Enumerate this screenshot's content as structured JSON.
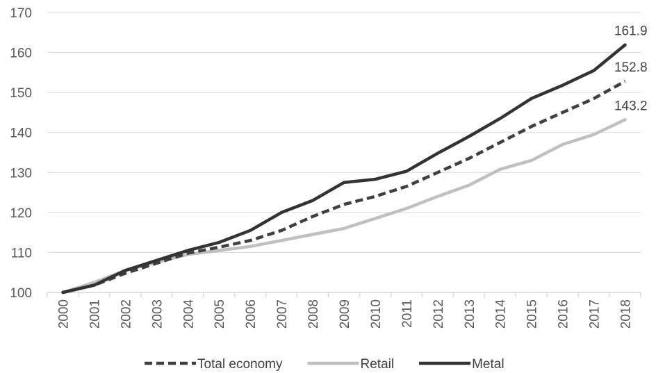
{
  "chart_data": {
    "type": "line",
    "title": "",
    "xlabel": "",
    "ylabel": "",
    "x": [
      "2000",
      "2001",
      "2002",
      "2003",
      "2004",
      "2005",
      "2006",
      "2007",
      "2008",
      "2009",
      "2010",
      "2011",
      "2012",
      "2013",
      "2014",
      "2015",
      "2016",
      "2017",
      "2018"
    ],
    "ylim": [
      100,
      170
    ],
    "yticks": [
      100,
      110,
      120,
      130,
      140,
      150,
      160,
      170
    ],
    "grid": "horizontal",
    "legend_position": "bottom",
    "series": [
      {
        "name": "Total economy",
        "style": "dashed",
        "color": "#404040",
        "values": [
          100,
          101.8,
          104.8,
          107.3,
          109.8,
          111.3,
          113.0,
          115.5,
          119.0,
          122.0,
          124.0,
          126.5,
          130.0,
          133.5,
          137.5,
          141.5,
          145.0,
          148.5,
          152.8
        ],
        "end_label": "152.8"
      },
      {
        "name": "Retail",
        "style": "solid",
        "color": "#c0c0c0",
        "values": [
          100,
          102.5,
          105.5,
          107.5,
          109.5,
          110.5,
          111.5,
          113.0,
          114.5,
          116.0,
          118.5,
          121.0,
          124.0,
          126.8,
          130.8,
          133.0,
          137.0,
          139.5,
          143.2
        ],
        "end_label": "143.2"
      },
      {
        "name": "Metal",
        "style": "solid",
        "color": "#333333",
        "values": [
          100,
          101.8,
          105.5,
          108.0,
          110.5,
          112.5,
          115.5,
          120.0,
          123.0,
          127.5,
          128.3,
          130.3,
          134.8,
          139.0,
          143.5,
          148.5,
          151.8,
          155.5,
          161.9
        ],
        "end_label": "161.9"
      }
    ]
  }
}
